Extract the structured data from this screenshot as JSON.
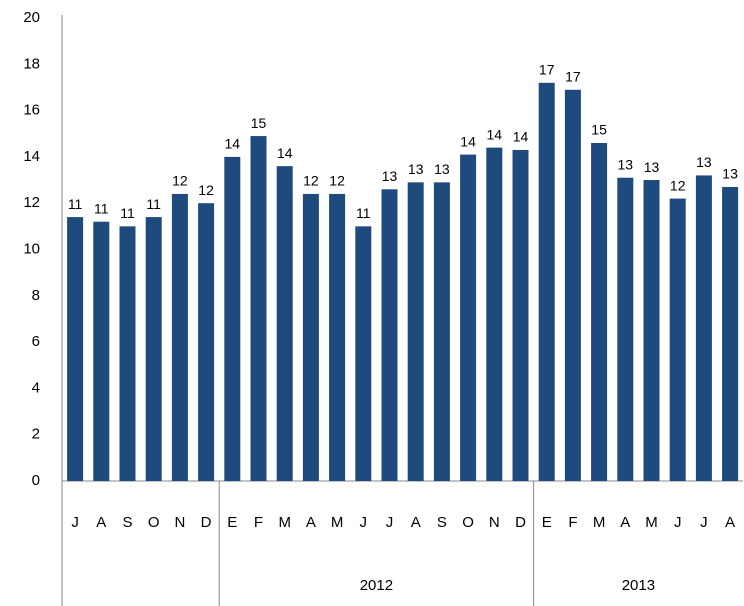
{
  "chart_data": {
    "type": "bar",
    "categories": [
      "J",
      "A",
      "S",
      "O",
      "N",
      "D",
      "E",
      "F",
      "M",
      "A",
      "M",
      "J",
      "J",
      "A",
      "S",
      "O",
      "N",
      "D",
      "E",
      "F",
      "M",
      "A",
      "M",
      "J",
      "J",
      "A"
    ],
    "values": [
      11.4,
      11.2,
      11.0,
      11.4,
      12.4,
      12.0,
      14.0,
      14.9,
      13.6,
      12.4,
      12.4,
      11.0,
      12.6,
      12.9,
      12.9,
      14.1,
      14.4,
      14.3,
      17.2,
      16.9,
      14.6,
      13.1,
      13.0,
      12.2,
      13.2,
      12.7
    ],
    "value_labels": [
      "11",
      "11",
      "11",
      "11",
      "12",
      "12",
      "14",
      "15",
      "14",
      "12",
      "12",
      "11",
      "13",
      "13",
      "13",
      "14",
      "14",
      "14",
      "17",
      "17",
      "15",
      "13",
      "13",
      "12",
      "13",
      "13"
    ],
    "groups": [
      {
        "label": null,
        "size": 6
      },
      {
        "label": "2012",
        "size": 12
      },
      {
        "label": "2013",
        "size": 8
      }
    ],
    "color": "#1f4a7e",
    "ylim": [
      0,
      20
    ],
    "yticks": [
      0,
      2,
      4,
      6,
      8,
      10,
      12,
      14,
      16,
      18,
      20
    ],
    "grid": false
  }
}
